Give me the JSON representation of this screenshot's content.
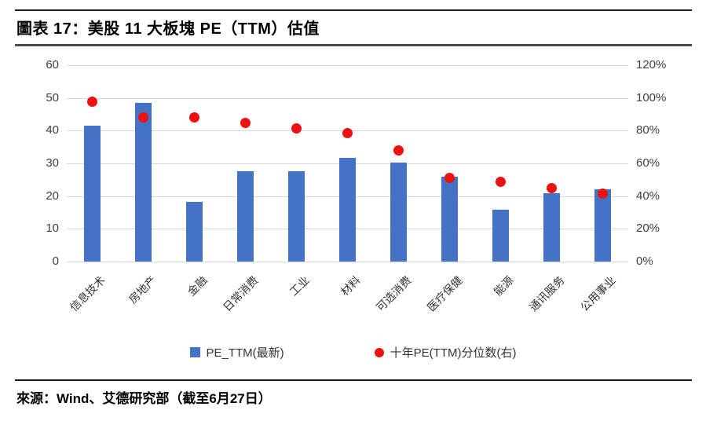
{
  "title": "圖表 17：美股 11 大板塊 PE（TTM）估值",
  "source": "來源：Wind、艾德研究部（截至6月27日）",
  "colors": {
    "bar": "#4472c4",
    "dot": "#ee1111",
    "grid": "#d9d9d9",
    "tick_text": "#404040",
    "title_text": "#000000"
  },
  "legend": {
    "items": [
      {
        "label": "PE_TTM(最新)",
        "marker": "square"
      },
      {
        "label": "十年PE(TTM)分位数(右)",
        "marker": "dot"
      }
    ]
  },
  "chart_data": {
    "type": "bar",
    "subtype": "bar+scatter-combo",
    "title": "圖表 17：美股 11 大板塊 PE（TTM）估值",
    "categories": [
      "信息技术",
      "房地产",
      "金融",
      "日常消费",
      "工业",
      "材料",
      "可选消费",
      "医疗保健",
      "能源",
      "通讯服务",
      "公用事业"
    ],
    "series": [
      {
        "name": "PE_TTM(最新)",
        "type": "bar",
        "axis": "left",
        "color": "#4472c4",
        "values": [
          41.5,
          48.5,
          18.2,
          27.5,
          27.5,
          31.6,
          30.2,
          26.0,
          15.9,
          21.0,
          22.2
        ]
      },
      {
        "name": "十年PE(TTM)分位数(右)",
        "type": "scatter",
        "axis": "right",
        "color": "#ee1111",
        "unit": "%",
        "values": [
          97.5,
          88,
          88,
          84.5,
          81.5,
          78.5,
          68,
          51,
          48.5,
          45,
          41.5
        ]
      }
    ],
    "left_axis": {
      "min": 0,
      "max": 60,
      "step": 10,
      "ticks": [
        "0",
        "10",
        "20",
        "30",
        "40",
        "50",
        "60"
      ]
    },
    "right_axis": {
      "min": 0,
      "max": 120,
      "step": 20,
      "unit": "%",
      "ticks": [
        "0%",
        "20%",
        "40%",
        "60%",
        "80%",
        "100%",
        "120%"
      ]
    },
    "grid": true,
    "legend_position": "bottom",
    "xlabel": "",
    "ylabel": ""
  }
}
